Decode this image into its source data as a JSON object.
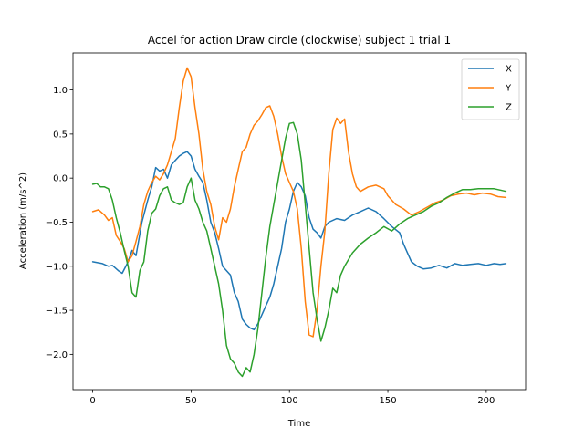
{
  "chart_data": {
    "type": "line",
    "title": "Accel for action Draw circle (clockwise) subject 1 trial 1",
    "xlabel": "Time",
    "ylabel": "Acceleration (m/s^2)",
    "xlim": [
      -10,
      220
    ],
    "ylim": [
      -2.4,
      1.42
    ],
    "xticks": [
      0,
      50,
      100,
      150,
      200
    ],
    "yticks": [
      -2.0,
      -1.5,
      -1.0,
      -0.5,
      0.0,
      0.5,
      1.0
    ],
    "ytick_labels": [
      "−2.0",
      "−1.5",
      "−1.0",
      "−0.5",
      "0.0",
      "0.5",
      "1.0"
    ],
    "grid": false,
    "legend_position": "upper right",
    "series": [
      {
        "name": "X",
        "color": "#1f77b4",
        "points": [
          [
            0,
            -0.95
          ],
          [
            5,
            -0.97
          ],
          [
            8,
            -1.0
          ],
          [
            10,
            -0.99
          ],
          [
            13,
            -1.05
          ],
          [
            15,
            -1.08
          ],
          [
            18,
            -0.95
          ],
          [
            20,
            -0.82
          ],
          [
            22,
            -0.88
          ],
          [
            25,
            -0.5
          ],
          [
            28,
            -0.25
          ],
          [
            30,
            -0.1
          ],
          [
            32,
            0.12
          ],
          [
            34,
            0.08
          ],
          [
            36,
            0.1
          ],
          [
            38,
            0.0
          ],
          [
            40,
            0.15
          ],
          [
            42,
            0.2
          ],
          [
            44,
            0.25
          ],
          [
            46,
            0.28
          ],
          [
            48,
            0.3
          ],
          [
            50,
            0.25
          ],
          [
            52,
            0.1
          ],
          [
            54,
            0.02
          ],
          [
            56,
            -0.05
          ],
          [
            58,
            -0.25
          ],
          [
            60,
            -0.5
          ],
          [
            62,
            -0.62
          ],
          [
            64,
            -0.8
          ],
          [
            66,
            -1.0
          ],
          [
            68,
            -1.05
          ],
          [
            70,
            -1.1
          ],
          [
            72,
            -1.3
          ],
          [
            74,
            -1.4
          ],
          [
            76,
            -1.6
          ],
          [
            78,
            -1.66
          ],
          [
            80,
            -1.7
          ],
          [
            82,
            -1.72
          ],
          [
            84,
            -1.65
          ],
          [
            86,
            -1.55
          ],
          [
            88,
            -1.45
          ],
          [
            90,
            -1.35
          ],
          [
            92,
            -1.2
          ],
          [
            94,
            -1.0
          ],
          [
            96,
            -0.8
          ],
          [
            98,
            -0.5
          ],
          [
            100,
            -0.35
          ],
          [
            102,
            -0.15
          ],
          [
            104,
            -0.05
          ],
          [
            106,
            -0.1
          ],
          [
            108,
            -0.2
          ],
          [
            110,
            -0.45
          ],
          [
            112,
            -0.58
          ],
          [
            114,
            -0.62
          ],
          [
            116,
            -0.68
          ],
          [
            118,
            -0.55
          ],
          [
            120,
            -0.5
          ],
          [
            124,
            -0.46
          ],
          [
            128,
            -0.48
          ],
          [
            132,
            -0.42
          ],
          [
            136,
            -0.38
          ],
          [
            140,
            -0.34
          ],
          [
            144,
            -0.38
          ],
          [
            148,
            -0.46
          ],
          [
            152,
            -0.55
          ],
          [
            156,
            -0.62
          ],
          [
            158,
            -0.75
          ],
          [
            160,
            -0.85
          ],
          [
            162,
            -0.95
          ],
          [
            165,
            -1.0
          ],
          [
            168,
            -1.03
          ],
          [
            172,
            -1.02
          ],
          [
            176,
            -0.99
          ],
          [
            180,
            -1.02
          ],
          [
            184,
            -0.97
          ],
          [
            188,
            -0.99
          ],
          [
            192,
            -0.98
          ],
          [
            196,
            -0.97
          ],
          [
            200,
            -0.99
          ],
          [
            204,
            -0.97
          ],
          [
            207,
            -0.98
          ],
          [
            210,
            -0.97
          ]
        ]
      },
      {
        "name": "Y",
        "color": "#ff7f0e",
        "points": [
          [
            0,
            -0.38
          ],
          [
            3,
            -0.36
          ],
          [
            6,
            -0.42
          ],
          [
            8,
            -0.48
          ],
          [
            10,
            -0.45
          ],
          [
            12,
            -0.65
          ],
          [
            14,
            -0.72
          ],
          [
            16,
            -0.8
          ],
          [
            18,
            -0.95
          ],
          [
            20,
            -0.88
          ],
          [
            22,
            -0.72
          ],
          [
            24,
            -0.55
          ],
          [
            26,
            -0.3
          ],
          [
            28,
            -0.15
          ],
          [
            30,
            -0.05
          ],
          [
            32,
            0.02
          ],
          [
            34,
            -0.02
          ],
          [
            36,
            0.05
          ],
          [
            38,
            0.15
          ],
          [
            40,
            0.3
          ],
          [
            42,
            0.45
          ],
          [
            44,
            0.8
          ],
          [
            46,
            1.1
          ],
          [
            48,
            1.25
          ],
          [
            50,
            1.15
          ],
          [
            52,
            0.8
          ],
          [
            54,
            0.5
          ],
          [
            56,
            0.1
          ],
          [
            58,
            -0.15
          ],
          [
            60,
            -0.3
          ],
          [
            62,
            -0.55
          ],
          [
            64,
            -0.7
          ],
          [
            66,
            -0.45
          ],
          [
            68,
            -0.5
          ],
          [
            70,
            -0.35
          ],
          [
            72,
            -0.1
          ],
          [
            74,
            0.1
          ],
          [
            76,
            0.3
          ],
          [
            78,
            0.35
          ],
          [
            80,
            0.5
          ],
          [
            82,
            0.6
          ],
          [
            84,
            0.65
          ],
          [
            86,
            0.72
          ],
          [
            88,
            0.8
          ],
          [
            90,
            0.82
          ],
          [
            92,
            0.7
          ],
          [
            94,
            0.5
          ],
          [
            96,
            0.25
          ],
          [
            98,
            0.05
          ],
          [
            100,
            -0.05
          ],
          [
            102,
            -0.15
          ],
          [
            104,
            -0.35
          ],
          [
            106,
            -0.8
          ],
          [
            108,
            -1.4
          ],
          [
            110,
            -1.78
          ],
          [
            112,
            -1.8
          ],
          [
            114,
            -1.5
          ],
          [
            116,
            -1.0
          ],
          [
            118,
            -0.6
          ],
          [
            120,
            0.05
          ],
          [
            122,
            0.55
          ],
          [
            124,
            0.68
          ],
          [
            126,
            0.62
          ],
          [
            128,
            0.67
          ],
          [
            130,
            0.3
          ],
          [
            132,
            0.05
          ],
          [
            134,
            -0.1
          ],
          [
            136,
            -0.15
          ],
          [
            140,
            -0.1
          ],
          [
            144,
            -0.08
          ],
          [
            148,
            -0.12
          ],
          [
            150,
            -0.2
          ],
          [
            154,
            -0.3
          ],
          [
            158,
            -0.35
          ],
          [
            162,
            -0.42
          ],
          [
            166,
            -0.38
          ],
          [
            170,
            -0.33
          ],
          [
            174,
            -0.28
          ],
          [
            178,
            -0.25
          ],
          [
            182,
            -0.2
          ],
          [
            186,
            -0.18
          ],
          [
            190,
            -0.17
          ],
          [
            194,
            -0.19
          ],
          [
            198,
            -0.17
          ],
          [
            202,
            -0.18
          ],
          [
            206,
            -0.21
          ],
          [
            210,
            -0.22
          ]
        ]
      },
      {
        "name": "Z",
        "color": "#2ca02c",
        "points": [
          [
            0,
            -0.07
          ],
          [
            2,
            -0.06
          ],
          [
            4,
            -0.1
          ],
          [
            6,
            -0.1
          ],
          [
            8,
            -0.12
          ],
          [
            10,
            -0.25
          ],
          [
            12,
            -0.45
          ],
          [
            14,
            -0.62
          ],
          [
            16,
            -0.82
          ],
          [
            18,
            -1.0
          ],
          [
            20,
            -1.3
          ],
          [
            22,
            -1.35
          ],
          [
            24,
            -1.05
          ],
          [
            26,
            -0.95
          ],
          [
            28,
            -0.6
          ],
          [
            30,
            -0.4
          ],
          [
            32,
            -0.35
          ],
          [
            34,
            -0.2
          ],
          [
            36,
            -0.12
          ],
          [
            38,
            -0.1
          ],
          [
            40,
            -0.25
          ],
          [
            42,
            -0.28
          ],
          [
            44,
            -0.3
          ],
          [
            46,
            -0.28
          ],
          [
            48,
            -0.1
          ],
          [
            50,
            0.0
          ],
          [
            52,
            -0.25
          ],
          [
            54,
            -0.35
          ],
          [
            56,
            -0.5
          ],
          [
            58,
            -0.6
          ],
          [
            60,
            -0.8
          ],
          [
            62,
            -1.0
          ],
          [
            64,
            -1.2
          ],
          [
            66,
            -1.5
          ],
          [
            68,
            -1.9
          ],
          [
            70,
            -2.05
          ],
          [
            72,
            -2.1
          ],
          [
            74,
            -2.2
          ],
          [
            76,
            -2.25
          ],
          [
            78,
            -2.15
          ],
          [
            80,
            -2.2
          ],
          [
            82,
            -2.0
          ],
          [
            84,
            -1.7
          ],
          [
            86,
            -1.3
          ],
          [
            88,
            -0.9
          ],
          [
            90,
            -0.55
          ],
          [
            92,
            -0.3
          ],
          [
            94,
            -0.05
          ],
          [
            96,
            0.2
          ],
          [
            98,
            0.45
          ],
          [
            100,
            0.62
          ],
          [
            102,
            0.63
          ],
          [
            104,
            0.5
          ],
          [
            106,
            0.2
          ],
          [
            108,
            -0.3
          ],
          [
            110,
            -0.8
          ],
          [
            112,
            -1.3
          ],
          [
            114,
            -1.6
          ],
          [
            116,
            -1.85
          ],
          [
            118,
            -1.7
          ],
          [
            120,
            -1.5
          ],
          [
            122,
            -1.25
          ],
          [
            124,
            -1.3
          ],
          [
            126,
            -1.1
          ],
          [
            128,
            -1.0
          ],
          [
            132,
            -0.85
          ],
          [
            136,
            -0.75
          ],
          [
            140,
            -0.68
          ],
          [
            144,
            -0.62
          ],
          [
            148,
            -0.55
          ],
          [
            152,
            -0.6
          ],
          [
            156,
            -0.52
          ],
          [
            160,
            -0.46
          ],
          [
            164,
            -0.42
          ],
          [
            168,
            -0.38
          ],
          [
            172,
            -0.32
          ],
          [
            176,
            -0.28
          ],
          [
            180,
            -0.22
          ],
          [
            184,
            -0.17
          ],
          [
            188,
            -0.13
          ],
          [
            192,
            -0.13
          ],
          [
            196,
            -0.12
          ],
          [
            200,
            -0.12
          ],
          [
            204,
            -0.12
          ],
          [
            208,
            -0.14
          ],
          [
            210,
            -0.15
          ]
        ]
      }
    ]
  }
}
